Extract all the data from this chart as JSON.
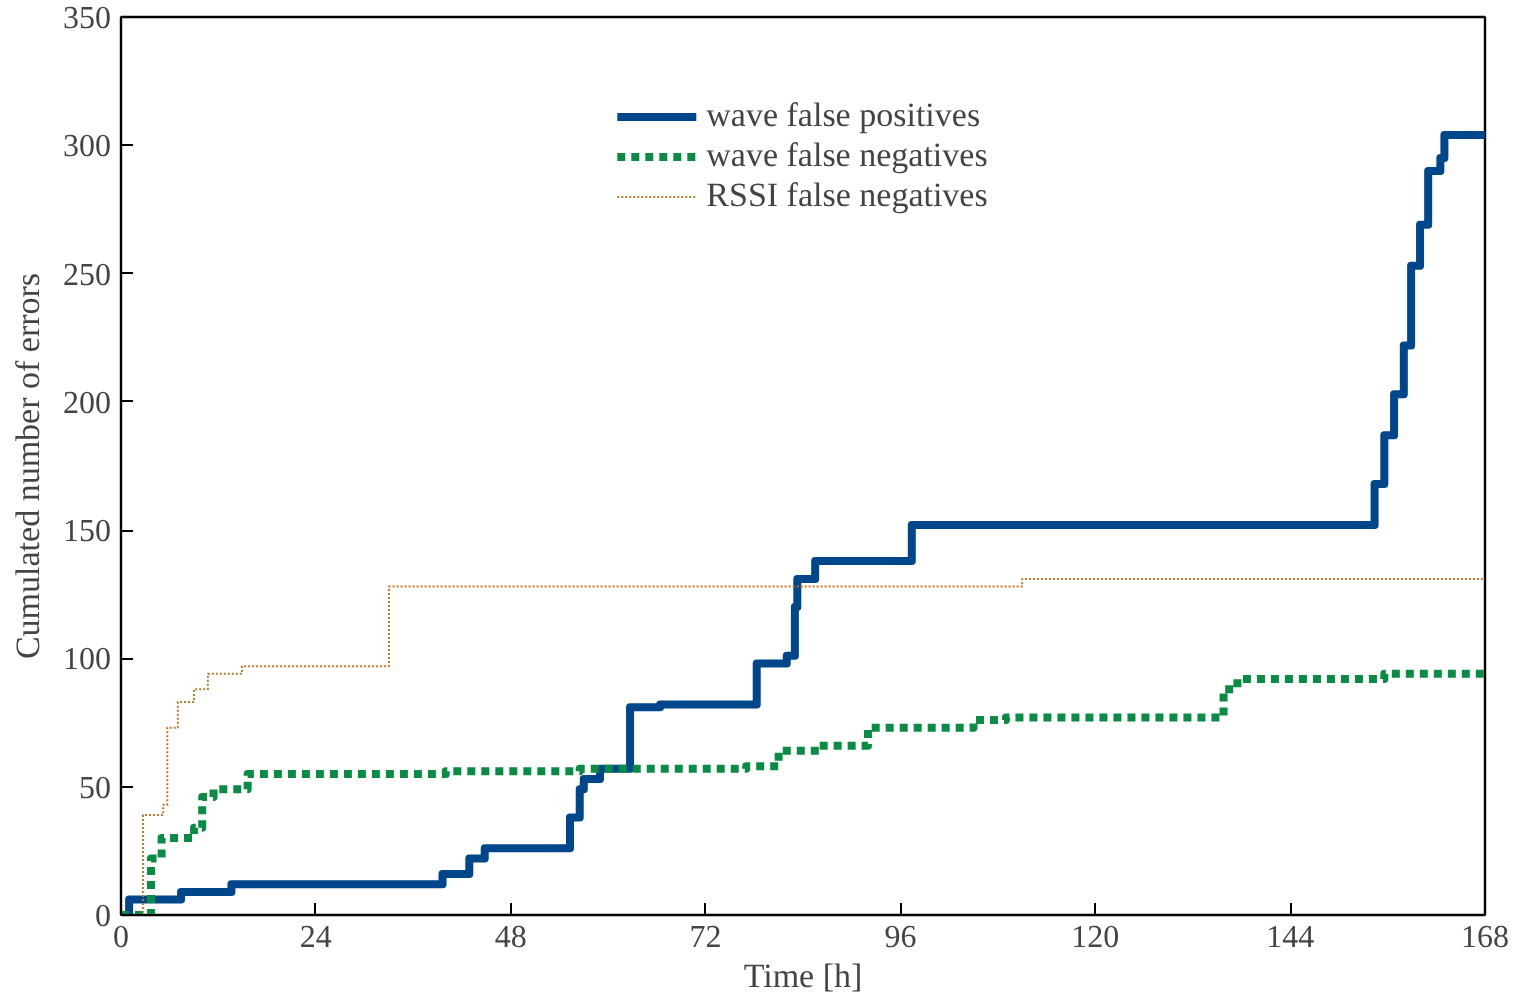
{
  "chart_data": {
    "type": "step",
    "xlabel": "Time [h]",
    "ylabel": "Cumulated number of errors",
    "xlim": [
      0,
      168
    ],
    "ylim": [
      0,
      350
    ],
    "xticks": [
      0,
      24,
      48,
      72,
      96,
      120,
      144,
      168
    ],
    "yticks": [
      0,
      50,
      100,
      150,
      200,
      250,
      300,
      350
    ],
    "grid": false,
    "legend": "top",
    "marker": "none",
    "series": [
      {
        "name": "wave false positives",
        "color": "#00468b",
        "line_style": "solid",
        "x": [
          0,
          1,
          7.4,
          13.6,
          34.7,
          39.6,
          42.9,
          44.8,
          54.5,
          55.3,
          56.5,
          57,
          59,
          62.7,
          66.4,
          78.3,
          82,
          83,
          83.3,
          85.5,
          97.4,
          153.9,
          154.4,
          155.6,
          156.8,
          158,
          158.9,
          160,
          161,
          162.5,
          163,
          168
        ],
        "values": [
          0,
          6,
          9,
          12,
          12,
          16,
          22,
          26,
          26,
          38,
          49,
          53,
          57,
          81,
          82,
          98,
          101,
          120,
          131,
          138,
          152,
          152,
          168,
          187,
          203,
          222,
          253,
          269,
          290,
          295,
          304,
          304
        ]
      },
      {
        "name": "wave false negatives",
        "color": "#0b8c45",
        "line_style": "dashed",
        "x": [
          0,
          2.5,
          3.7,
          5,
          9,
          10,
          11.4,
          15.6,
          40,
          56.5,
          77,
          81,
          86,
          92,
          105,
          109,
          132.6,
          135.8,
          137.5,
          155.6,
          168
        ],
        "values": [
          0,
          0,
          22,
          30,
          34,
          46,
          49,
          55,
          56,
          57,
          58,
          64,
          66,
          73,
          76,
          77,
          77,
          88,
          92,
          94,
          94
        ]
      },
      {
        "name": "RSSI false negatives",
        "color": "#c0762a",
        "line_style": "dotted",
        "x": [
          0,
          2,
          2.7,
          5.2,
          5.7,
          7,
          9,
          10.7,
          14.9,
          33,
          104.3,
          111,
          168
        ],
        "values": [
          0,
          0,
          39,
          43,
          73,
          83,
          88,
          94,
          97,
          128,
          128,
          131,
          131
        ]
      }
    ]
  }
}
